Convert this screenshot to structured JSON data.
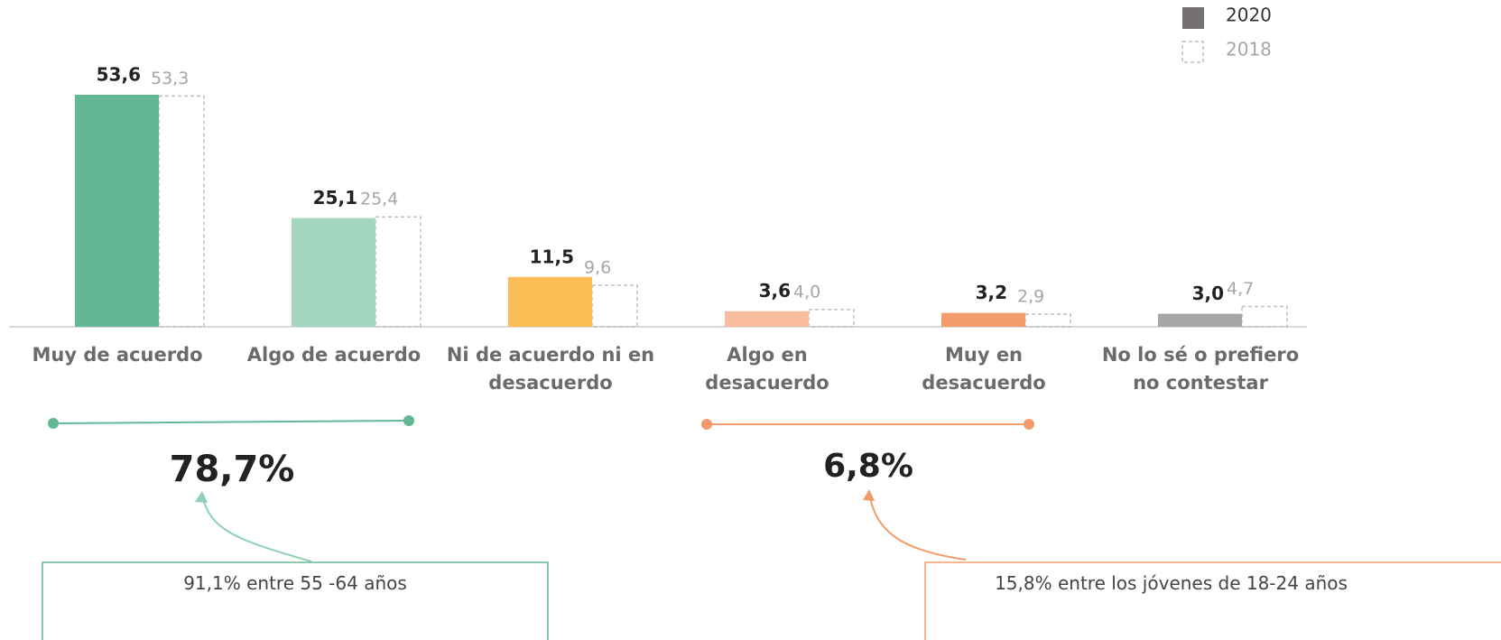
{
  "chart_data": {
    "type": "bar",
    "categories": [
      "Muy de acuerdo",
      "Algo de acuerdo",
      "Ni de acuerdo ni en\ndesacuerdo",
      "Algo en\ndesacuerdo",
      "Muy en\ndesacuerdo",
      "No lo sé o prefiero\nno contestar"
    ],
    "series": [
      {
        "name": "2020",
        "color": "#767171",
        "colors": [
          "#62b894",
          "#a3d5bf",
          "#fdbd56",
          "#f9bc9f",
          "#f49b6c",
          "#a6a6a6"
        ],
        "values": [
          53.6,
          25.1,
          11.5,
          3.6,
          3.2,
          3.0
        ],
        "value_labels": [
          "53,6",
          "25,1",
          "11,5",
          "3,6",
          "3,2",
          "3,0"
        ]
      },
      {
        "name": "2018",
        "color": "#bfbfbf",
        "values": [
          53.3,
          25.4,
          9.6,
          4.0,
          2.9,
          4.7
        ],
        "value_labels": [
          "53,3",
          "25,4",
          "9,6",
          "4,0",
          "2,9",
          "4,7"
        ]
      }
    ],
    "legend": "top-right",
    "annotations": [
      {
        "text": "78,7%",
        "note": "91,1% entre 55 -64 años",
        "color": "#62b894"
      },
      {
        "text": "6,8%",
        "note": "15,8% entre los jóvenes de 18-24 años",
        "color": "#f49b6c"
      }
    ]
  }
}
